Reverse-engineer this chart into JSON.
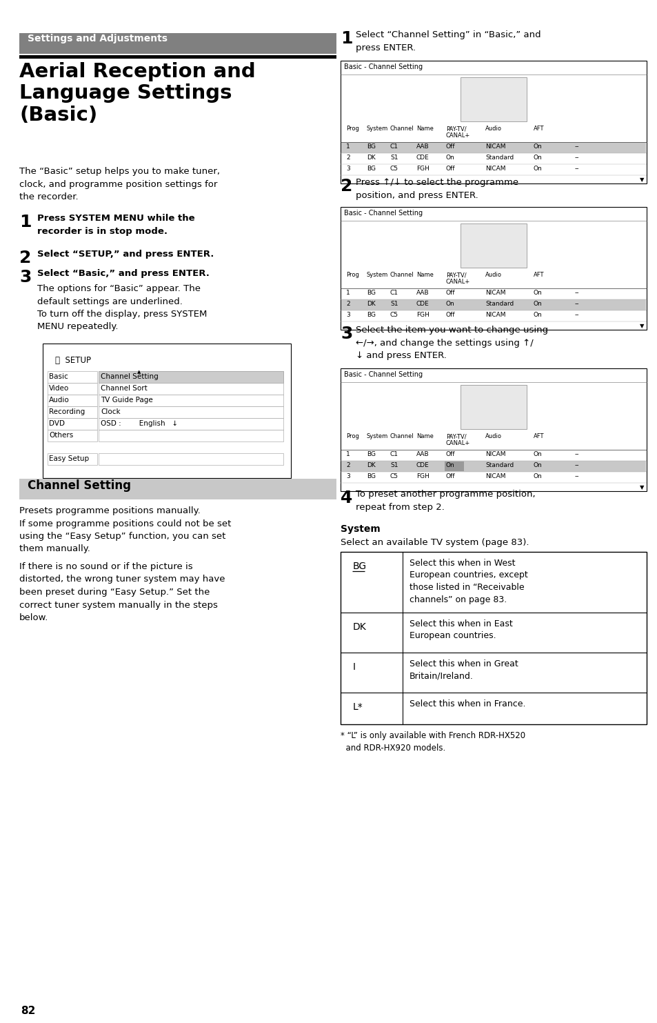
{
  "page_bg": "#ffffff",
  "page_number": "82",
  "header_bg": "#808080",
  "header_text": "Settings and Adjustments",
  "header_text_color": "#ffffff",
  "title": "Aerial Reception and\nLanguage Settings\n(Basic)",
  "intro_text": "The “Basic” setup helps you to make tuner,\nclock, and programme position settings for\nthe recorder.",
  "step3_sub": "The options for “Basic” appear. The\ndefault settings are underlined.\nTo turn off the display, press SYSTEM\nMENU repeatedly.",
  "channel_setting_header": "Channel Setting",
  "channel_setting_header_bg": "#c8c8c8",
  "channel_setting_text1": "Presets programme positions manually.\nIf some programme positions could not be set\nusing the “Easy Setup” function, you can set\nthem manually.",
  "channel_setting_text2": "If there is no sound or if the picture is\ndistorted, the wrong tuner system may have\nbeen preset during “Easy Setup.” Set the\ncorrect tuner system manually in the steps\nbelow.",
  "right_step1_text": "Select “Channel Setting” in “Basic,” and\npress ENTER.",
  "right_step2_text": "Press ↑/↓ to select the programme\nposition, and press ENTER.",
  "right_step3_text": "Select the item you want to change using\n←/→, and change the settings using ↑/\n↓ and press ENTER.",
  "right_step4_text": "To preset another programme position,\nrepeat from step 2.",
  "system_heading": "System",
  "system_subtext": "Select an available TV system (page 83).",
  "system_table": [
    {
      "label": "BG",
      "underline": true,
      "desc": "Select this when in West\nEuropean countries, except\nthose listed in “Receivable\nchannels” on page 83."
    },
    {
      "label": "DK",
      "underline": false,
      "desc": "Select this when in East\nEuropean countries."
    },
    {
      "label": "I",
      "underline": false,
      "desc": "Select this when in Great\nBritain/Ireland."
    },
    {
      "label": "L*",
      "underline": false,
      "desc": "Select this when in France."
    }
  ],
  "footnote": "* “L” is only available with French RDR-HX520\n  and RDR-HX920 models.",
  "setup_menu_items_left": [
    "Basic",
    "Video",
    "Audio",
    "Recording",
    "DVD",
    "Others",
    "",
    "Easy Setup"
  ],
  "setup_menu_items_right": [
    "Channel Setting",
    "Channel Sort",
    "TV Guide Page",
    "Clock",
    "OSD :        English   ↓",
    "",
    "",
    ""
  ]
}
